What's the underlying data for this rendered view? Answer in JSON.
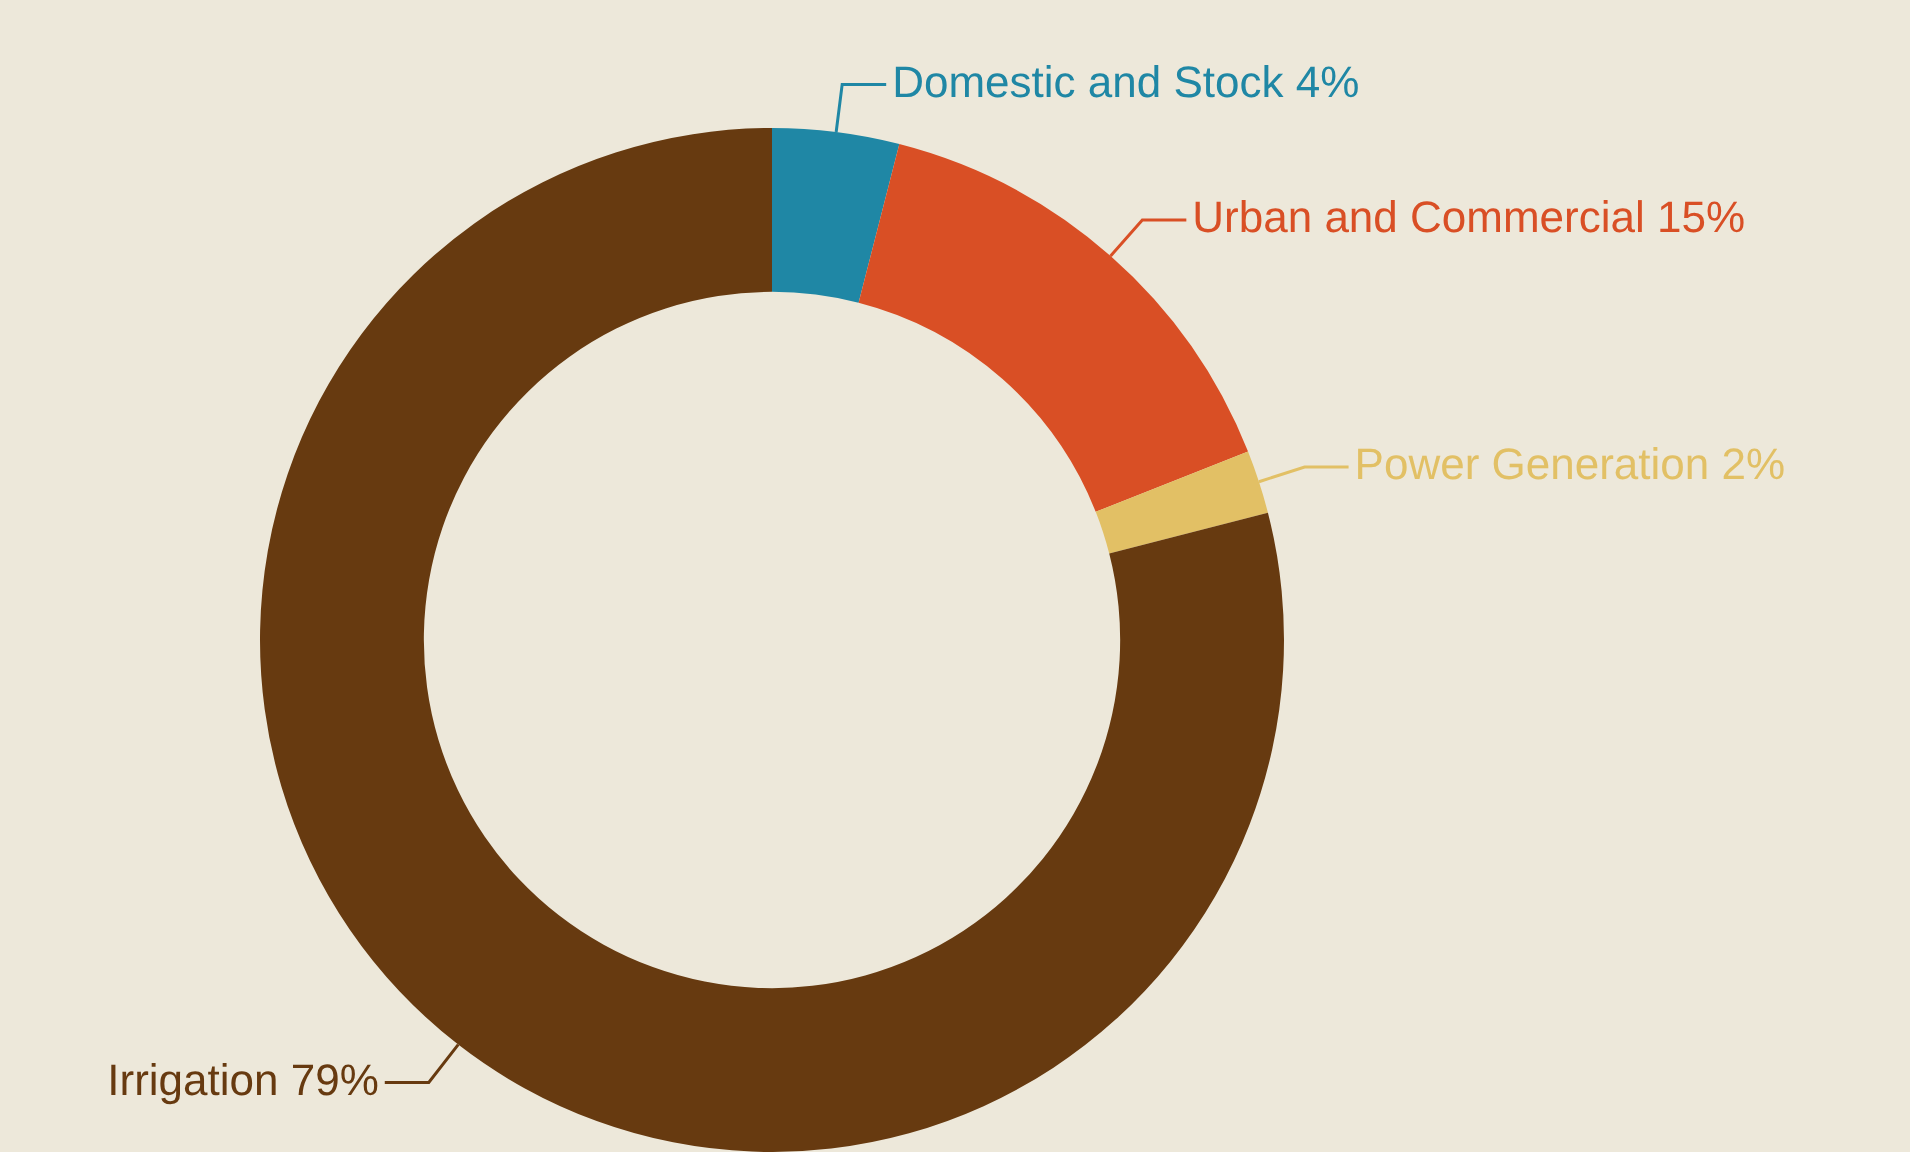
{
  "chart_data": {
    "type": "donut",
    "categories": [
      "Domestic and Stock",
      "Urban and Commercial",
      "Power Generation",
      "Irrigation"
    ],
    "values": [
      4,
      15,
      2,
      79
    ],
    "value_labels": [
      "4%",
      "15%",
      "2%",
      "79%"
    ],
    "colors": [
      "#1f87a5",
      "#d94f25",
      "#e2c065",
      "#673a10"
    ],
    "legend": false
  }
}
